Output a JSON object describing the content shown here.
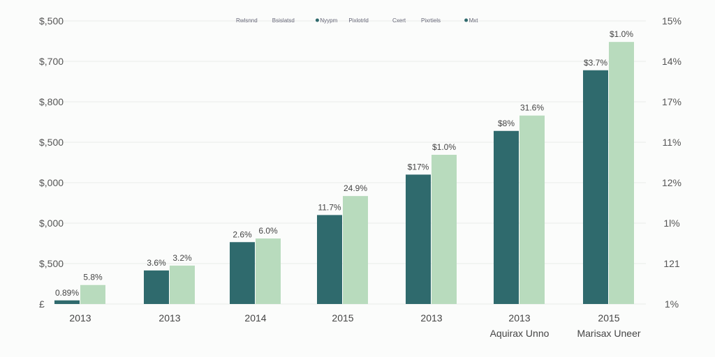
{
  "chart_data": {
    "type": "bar",
    "title": "",
    "legend": {
      "placement": "top-center",
      "entries": [
        "Rwlsnnd",
        "Bsislatsd",
        "Nyypm",
        "Pixlotrld",
        "Cxert",
        "Pixrtiels",
        "Mxt"
      ]
    },
    "left_axis_ticks": [
      "£",
      "$,500",
      "$,000",
      "$,000",
      "$,500",
      "$,800",
      "$,700",
      "$,500"
    ],
    "right_axis_ticks": [
      "1%",
      "121",
      "1l%",
      "12%",
      "11%",
      "17%",
      "14%",
      "15%"
    ],
    "categories": [
      "2013",
      "2013",
      "2014",
      "2015",
      "2013",
      "2013",
      "2015"
    ],
    "category_sublabels": [
      "",
      "",
      "",
      "",
      "",
      "Aquirax Unno",
      "Marisax Uneer"
    ],
    "ylim": [
      0,
      7
    ],
    "grid": true,
    "series": [
      {
        "color": "#2f6a6d",
        "values": [
          0.09,
          0.83,
          1.53,
          2.2,
          3.2,
          4.28,
          5.78
        ],
        "labels": [
          "0.89%",
          "3.6%",
          "2.6%",
          "11.7%",
          "$17%",
          "$8%",
          "$3.7%"
        ]
      },
      {
        "color": "#b8dbbd",
        "values": [
          0.47,
          0.95,
          1.62,
          2.67,
          3.69,
          4.66,
          6.48
        ],
        "labels": [
          "5.8%",
          "3.2%",
          "6.0%",
          "24.9%",
          "$1.0%",
          "31.6%",
          "$1.0%"
        ]
      }
    ]
  }
}
